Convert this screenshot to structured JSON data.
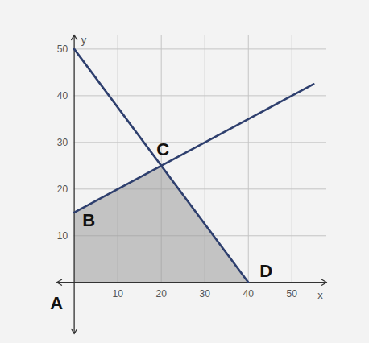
{
  "chart_data": {
    "type": "line",
    "x_label": "x",
    "y_label": "y",
    "xlim": [
      -4,
      58
    ],
    "ylim": [
      -11,
      53
    ],
    "xticks": [
      10,
      20,
      30,
      40,
      50
    ],
    "yticks": [
      10,
      20,
      30,
      40,
      50
    ],
    "grid": true,
    "series": [
      {
        "color": "#2e3f6e",
        "x": [
          0,
          40
        ],
        "values": [
          50,
          0
        ]
      },
      {
        "color": "#2e3f6e",
        "x": [
          0,
          55
        ],
        "values": [
          15,
          42.5
        ]
      }
    ],
    "region": {
      "color": "#9a9a9a",
      "x": [
        0,
        0,
        20,
        40
      ],
      "y": [
        0,
        15,
        25,
        0
      ],
      "labels": [
        "A",
        "B",
        "C",
        "D"
      ]
    }
  }
}
